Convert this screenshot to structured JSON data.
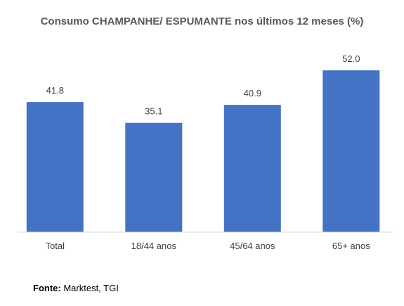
{
  "chart_data": {
    "type": "bar",
    "title": "Consumo CHAMPANHE/ ESPUMANTE nos últimos 12 meses (%)",
    "categories": [
      "Total",
      "18/44 anos",
      "45/64 anos",
      "65+ anos"
    ],
    "values": [
      41.8,
      35.1,
      40.9,
      52.0
    ],
    "data_labels": [
      "41.8",
      "35.1",
      "40.9",
      "52.0"
    ],
    "xlabel": "",
    "ylabel": "",
    "ylim": [
      0,
      60
    ],
    "grid": false,
    "legend": "none",
    "bar_color": "#4472C4"
  },
  "source": {
    "label": "Fonte:",
    "text": "Marktest, TGI"
  }
}
